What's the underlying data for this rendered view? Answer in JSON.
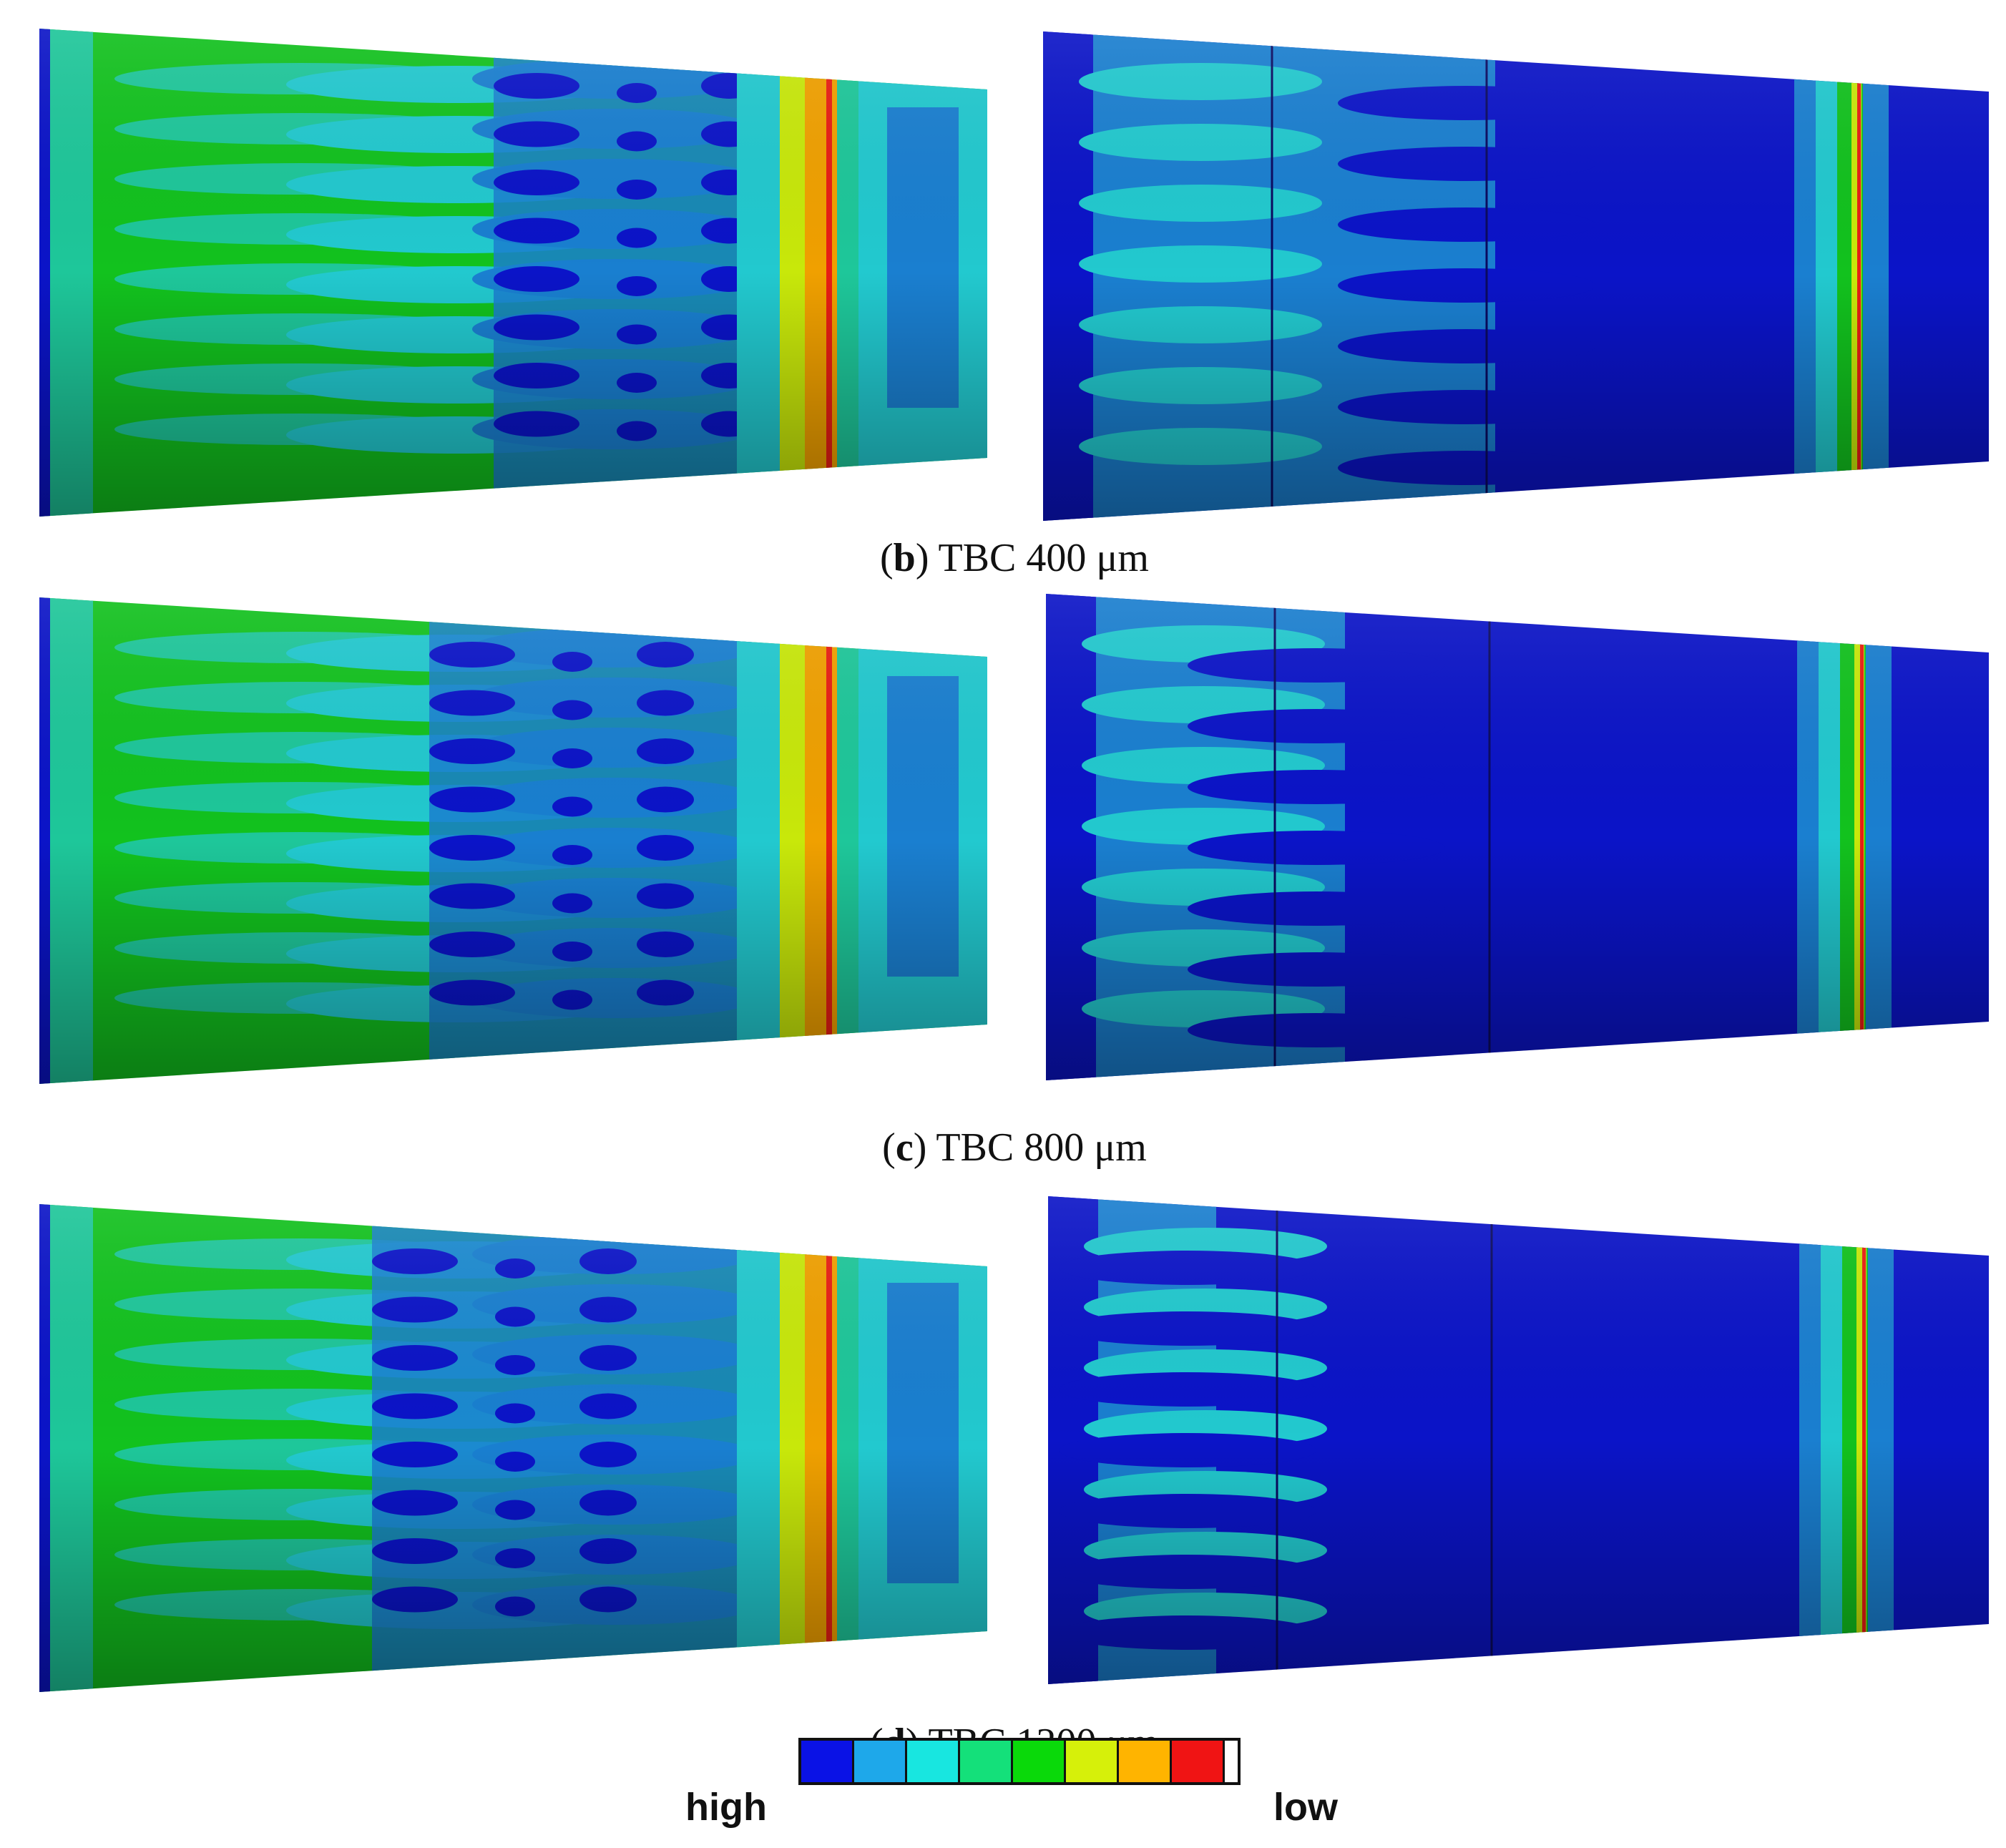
{
  "captions": {
    "b": {
      "letter": "b",
      "text": "TBC 400 μm"
    },
    "c": {
      "letter": "c",
      "text": "TBC 800 μm"
    },
    "d": {
      "letter": "d",
      "text": "TBC 1200 μm"
    }
  },
  "legend": {
    "left_label": "high",
    "right_label": "low",
    "colors": [
      "#0a12e6",
      "#1ea8ea",
      "#18e6e0",
      "#14e07a",
      "#0ad90a",
      "#d6f00a",
      "#ffb400",
      "#f01414"
    ]
  },
  "contour_palette": {
    "deep_blue": "#0b14c8",
    "mid_blue": "#1a7fd0",
    "cyan": "#22c9cf",
    "teal": "#1ec79a",
    "green": "#12c21e",
    "lime": "#c8e80a",
    "orange": "#f0a000",
    "red": "#e81e14"
  }
}
